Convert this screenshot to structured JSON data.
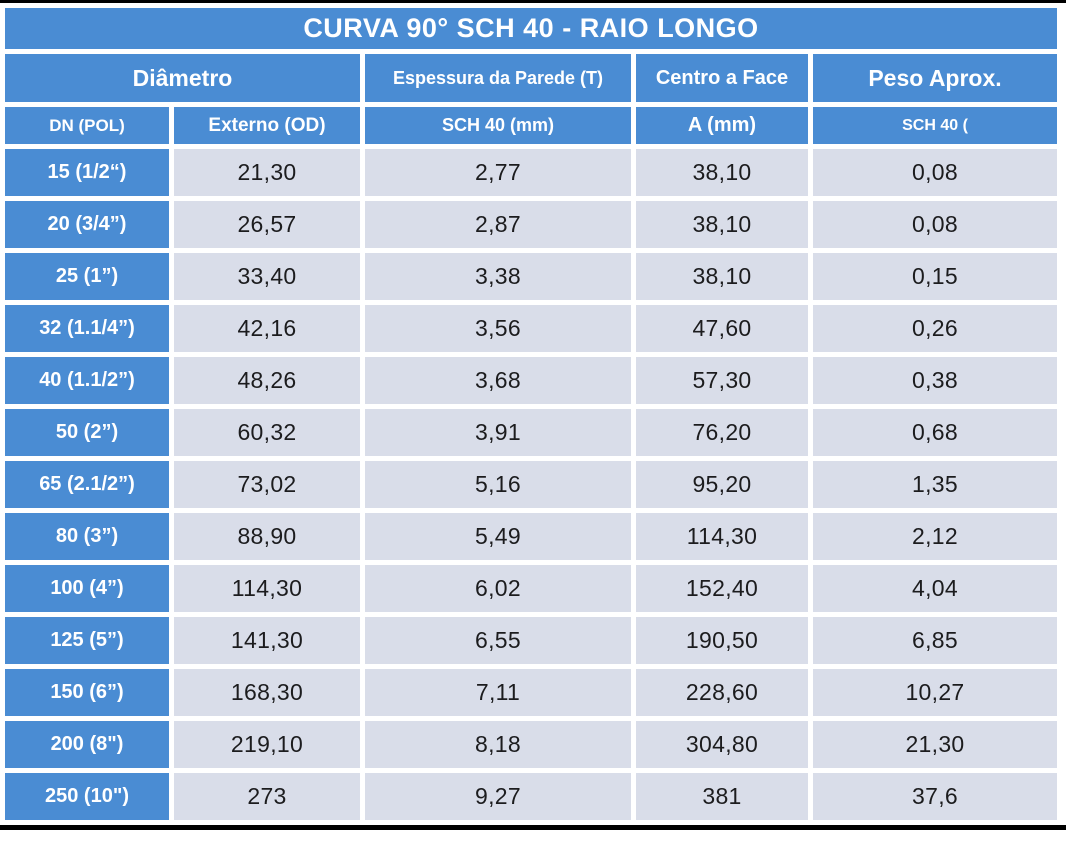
{
  "title": "CURVA 90° SCH 40 - RAIO LONGO",
  "colors": {
    "header_blue": "#4a8cd3",
    "cell_bg": "#d9dde9",
    "value_text": "#1c1c1e",
    "header_text": "#ffffff",
    "rule_black": "#000000"
  },
  "chart_data": {
    "type": "table",
    "title": "CURVA 90° SCH 40 - RAIO LONGO",
    "group_headers": [
      {
        "label": "Diâmetro",
        "colspan": 2
      },
      {
        "label": "Espessura da Parede (T)",
        "colspan": 1
      },
      {
        "label": "Centro a Face",
        "colspan": 1
      },
      {
        "label": "Peso Aprox.",
        "colspan": 1
      }
    ],
    "columns": [
      "DN (POL)",
      "Externo (OD)",
      "SCH 40 (mm)",
      "A (mm)",
      "SCH 40 ("
    ],
    "rows": [
      [
        "15 (1/2“)",
        "21,30",
        "2,77",
        "38,10",
        "0,08"
      ],
      [
        "20 (3/4”)",
        "26,57",
        "2,87",
        "38,10",
        "0,08"
      ],
      [
        "25 (1”)",
        "33,40",
        "3,38",
        "38,10",
        "0,15"
      ],
      [
        "32 (1.1/4”)",
        "42,16",
        "3,56",
        "47,60",
        "0,26"
      ],
      [
        "40 (1.1/2”)",
        "48,26",
        "3,68",
        "57,30",
        "0,38"
      ],
      [
        "50 (2”)",
        "60,32",
        "3,91",
        "76,20",
        "0,68"
      ],
      [
        "65 (2.1/2”)",
        "73,02",
        "5,16",
        "95,20",
        "1,35"
      ],
      [
        "80 (3”)",
        "88,90",
        "5,49",
        "114,30",
        "2,12"
      ],
      [
        "100 (4”)",
        "114,30",
        "6,02",
        "152,40",
        "4,04"
      ],
      [
        "125 (5”)",
        "141,30",
        "6,55",
        "190,50",
        "6,85"
      ],
      [
        "150 (6”)",
        "168,30",
        "7,11",
        "228,60",
        "10,27"
      ],
      [
        "200 (8\")",
        "219,10",
        "8,18",
        "304,80",
        "21,30"
      ],
      [
        "250 (10\")",
        "273",
        "9,27",
        "381",
        "37,6"
      ]
    ]
  }
}
